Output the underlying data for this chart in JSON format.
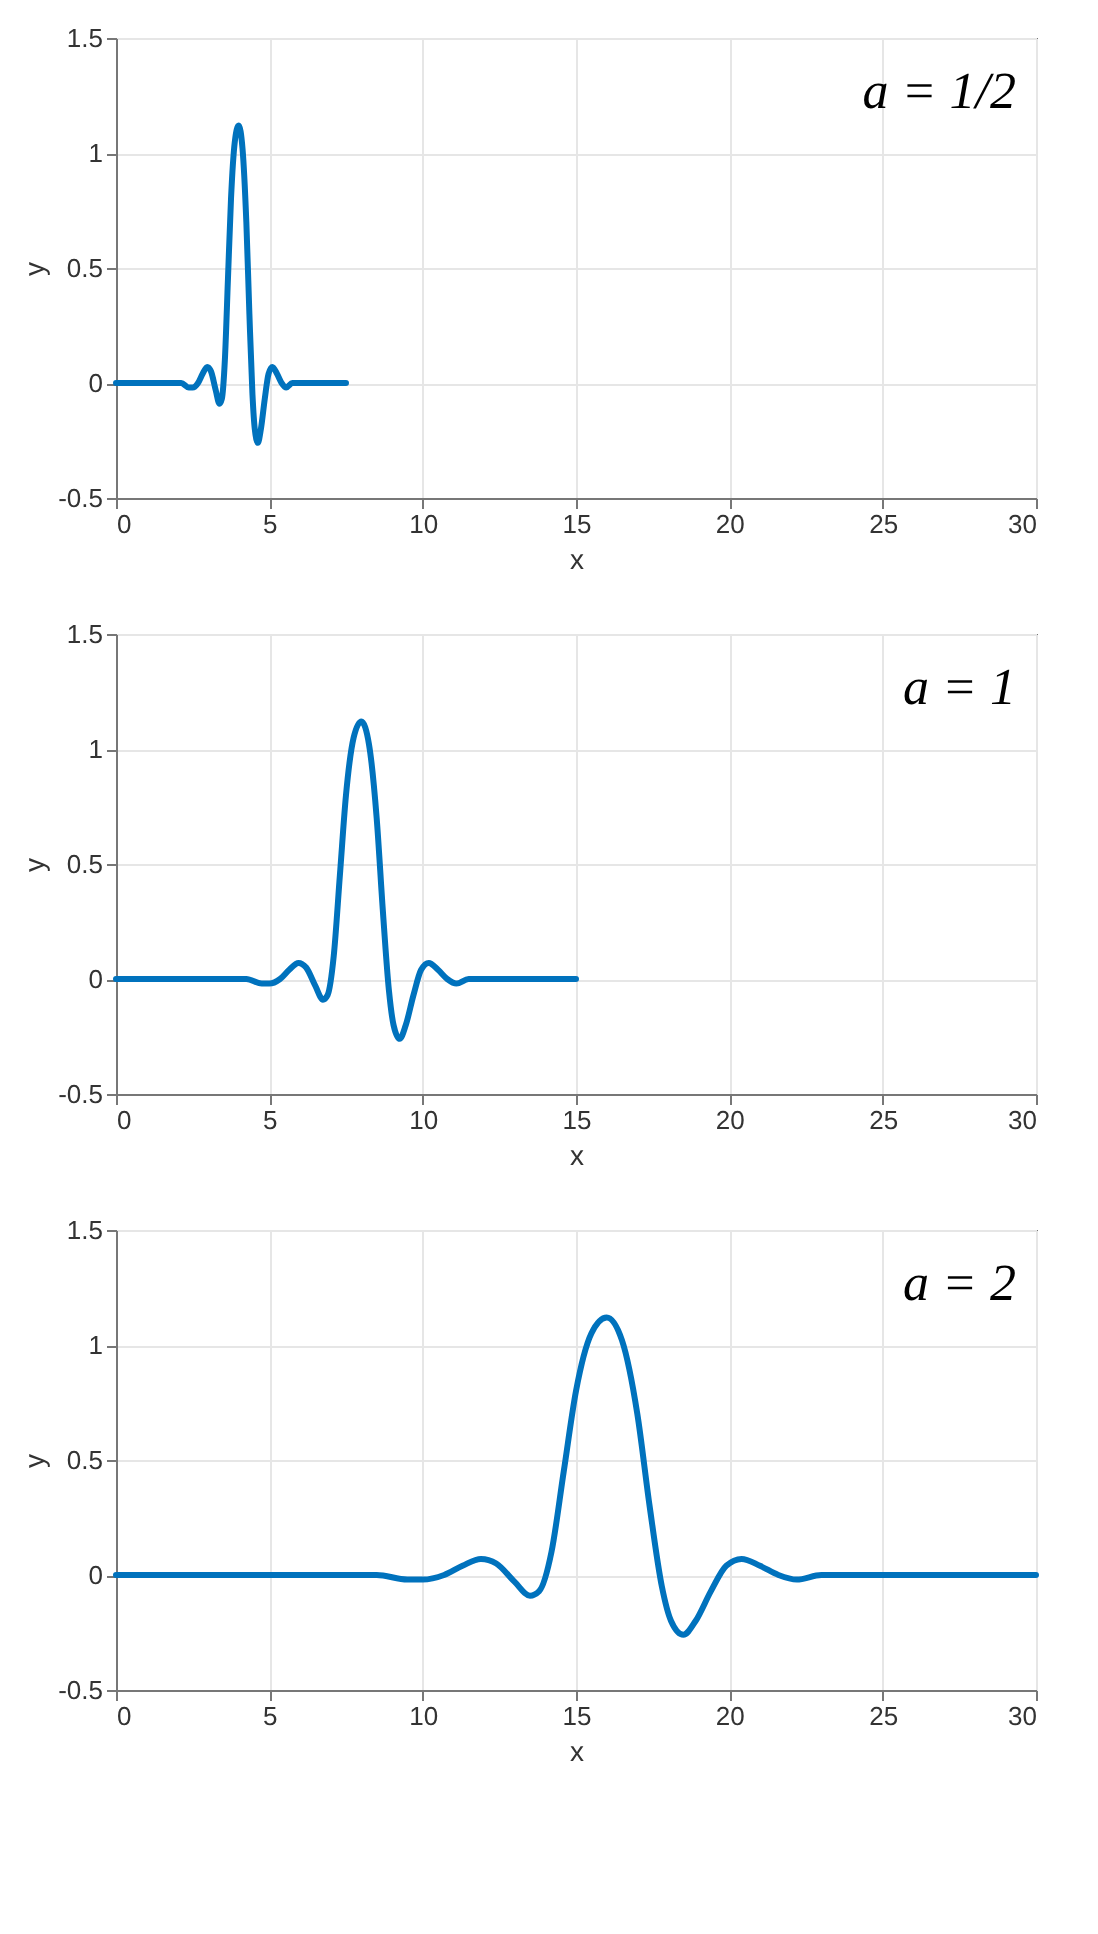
{
  "chart_data": [
    {
      "type": "line",
      "xlabel": "x",
      "ylabel": "y",
      "annotations": [
        "a = 1/2"
      ],
      "xlim": [
        0,
        30
      ],
      "ylim": [
        -0.5,
        1.5
      ],
      "xticks": [
        0,
        5,
        10,
        15,
        20,
        25,
        30
      ],
      "yticks": [
        -0.5,
        0,
        0.5,
        1,
        1.5
      ],
      "grid": true,
      "line_style": "solid",
      "series": [
        {
          "color": "#0072bd",
          "x": [
            0,
            1.25,
            2.125,
            2.375,
            2.5,
            2.675,
            2.825,
            2.975,
            3.1,
            3.25,
            3.375,
            3.45,
            3.55,
            3.65,
            3.75,
            3.875,
            4,
            4.125,
            4.25,
            4.35,
            4.45,
            4.525,
            4.625,
            4.725,
            4.85,
            4.975,
            5.1,
            5.25,
            5.4,
            5.55,
            5.75,
            6,
            7.5
          ],
          "values": [
            0,
            0,
            0,
            -0.02,
            -0.02,
            0,
            0.04,
            0.07,
            0.05,
            -0.03,
            -0.09,
            -0.07,
            0.1,
            0.45,
            0.8,
            1.05,
            1.12,
            1.02,
            0.7,
            0.3,
            -0.05,
            -0.2,
            -0.26,
            -0.2,
            -0.07,
            0.04,
            0.07,
            0.04,
            0,
            -0.02,
            0,
            0,
            0
          ]
        }
      ]
    },
    {
      "type": "line",
      "xlabel": "x",
      "ylabel": "y",
      "annotations": [
        "a = 1"
      ],
      "xlim": [
        0,
        30
      ],
      "ylim": [
        -0.5,
        1.5
      ],
      "xticks": [
        0,
        5,
        10,
        15,
        20,
        25,
        30
      ],
      "yticks": [
        -0.5,
        0,
        0.5,
        1,
        1.5
      ],
      "grid": true,
      "line_style": "solid",
      "series": [
        {
          "color": "#0072bd",
          "x": [
            0,
            2.5,
            4.25,
            4.75,
            5,
            5.35,
            5.65,
            5.95,
            6.2,
            6.5,
            6.75,
            6.9,
            7.1,
            7.3,
            7.5,
            7.75,
            8,
            8.25,
            8.5,
            8.7,
            8.9,
            9.05,
            9.25,
            9.45,
            9.7,
            9.95,
            10.2,
            10.5,
            10.8,
            11.1,
            11.5,
            12,
            15
          ],
          "values": [
            0,
            0,
            0,
            -0.02,
            -0.02,
            0,
            0.04,
            0.07,
            0.05,
            -0.03,
            -0.09,
            -0.07,
            0.1,
            0.45,
            0.8,
            1.05,
            1.12,
            1.02,
            0.7,
            0.3,
            -0.05,
            -0.2,
            -0.26,
            -0.2,
            -0.07,
            0.04,
            0.07,
            0.04,
            0,
            -0.02,
            0,
            0,
            0
          ]
        }
      ]
    },
    {
      "type": "line",
      "xlabel": "x",
      "ylabel": "y",
      "annotations": [
        "a = 2"
      ],
      "xlim": [
        0,
        30
      ],
      "ylim": [
        -0.5,
        1.5
      ],
      "xticks": [
        0,
        5,
        10,
        15,
        20,
        25,
        30
      ],
      "yticks": [
        -0.5,
        0,
        0.5,
        1,
        1.5
      ],
      "grid": true,
      "line_style": "solid",
      "series": [
        {
          "color": "#0072bd",
          "x": [
            0,
            5,
            8.5,
            9.5,
            10,
            10.7,
            11.3,
            11.9,
            12.4,
            13,
            13.5,
            13.8,
            14.2,
            14.6,
            15,
            15.5,
            16,
            16.5,
            17,
            17.4,
            17.8,
            18.1,
            18.5,
            18.9,
            19.4,
            19.9,
            20.4,
            21,
            21.6,
            22.2,
            23,
            24,
            30
          ],
          "values": [
            0,
            0,
            0,
            -0.02,
            -0.02,
            0,
            0.04,
            0.07,
            0.05,
            -0.03,
            -0.09,
            -0.07,
            0.1,
            0.45,
            0.8,
            1.05,
            1.12,
            1.02,
            0.7,
            0.3,
            -0.05,
            -0.2,
            -0.26,
            -0.2,
            -0.07,
            0.04,
            0.07,
            0.04,
            0,
            -0.02,
            0,
            0,
            0
          ]
        }
      ]
    }
  ]
}
